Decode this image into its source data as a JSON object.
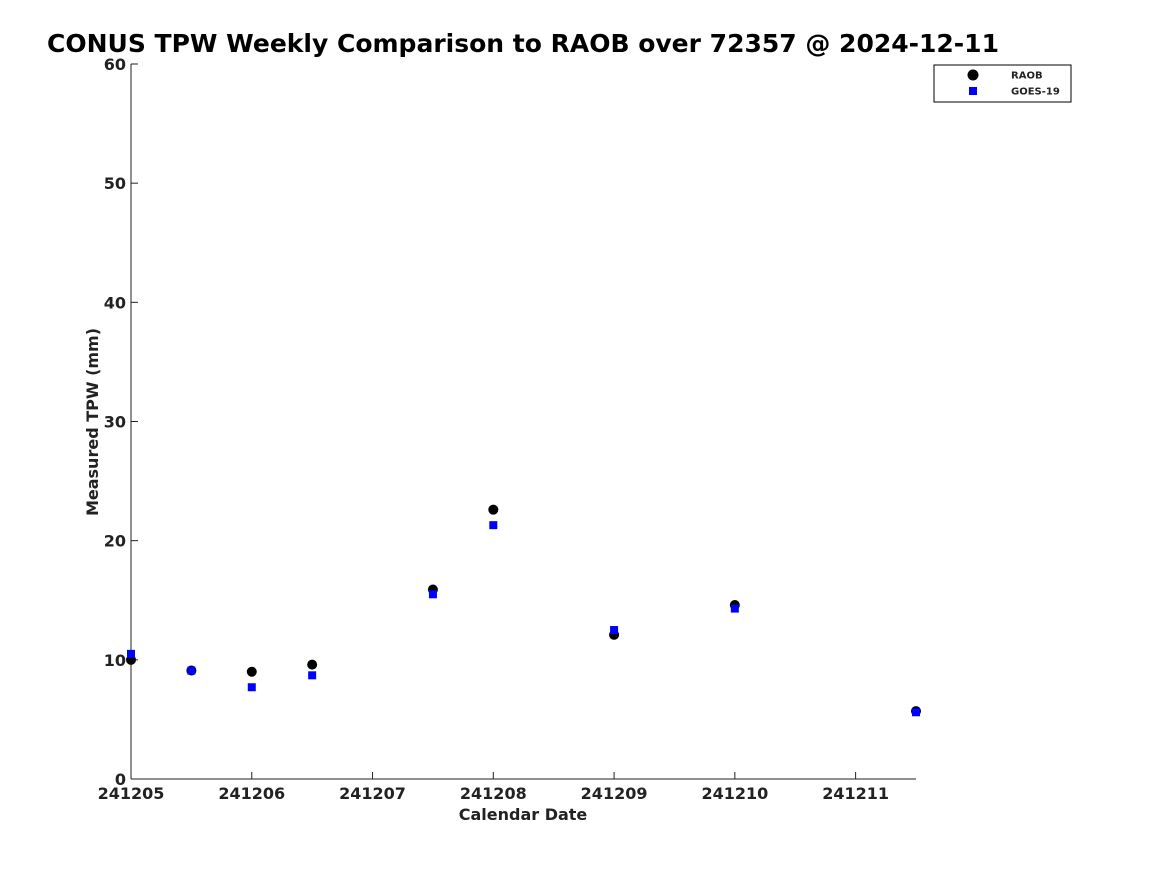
{
  "chart_data": {
    "type": "scatter",
    "title": "CONUS TPW Weekly Comparison to RAOB over 72357 @ 2024-12-11",
    "xlabel": "Calendar Date",
    "ylabel": "Measured TPW (mm)",
    "xlim": [
      0,
      6.5
    ],
    "ylim": [
      0,
      60
    ],
    "x_ticks": [
      {
        "value": 0,
        "label": "241205"
      },
      {
        "value": 1,
        "label": "241206"
      },
      {
        "value": 2,
        "label": "241207"
      },
      {
        "value": 3,
        "label": "241208"
      },
      {
        "value": 4,
        "label": "241209"
      },
      {
        "value": 5,
        "label": "241210"
      },
      {
        "value": 6,
        "label": "241211"
      }
    ],
    "y_ticks": [
      {
        "value": 0,
        "label": "0"
      },
      {
        "value": 10,
        "label": "10"
      },
      {
        "value": 20,
        "label": "20"
      },
      {
        "value": 30,
        "label": "30"
      },
      {
        "value": 40,
        "label": "40"
      },
      {
        "value": 50,
        "label": "50"
      },
      {
        "value": 60,
        "label": "60"
      }
    ],
    "grid": false,
    "legend_position": "top-right",
    "series": [
      {
        "name": "RAOB",
        "marker": "circle",
        "color": "#000000",
        "points": [
          {
            "x": 0.0,
            "y": 10.0
          },
          {
            "x": 0.5,
            "y": 9.1
          },
          {
            "x": 1.0,
            "y": 9.0
          },
          {
            "x": 1.5,
            "y": 9.6
          },
          {
            "x": 2.5,
            "y": 15.9
          },
          {
            "x": 3.0,
            "y": 22.6
          },
          {
            "x": 4.0,
            "y": 12.1
          },
          {
            "x": 5.0,
            "y": 14.6
          },
          {
            "x": 6.5,
            "y": 5.7
          }
        ]
      },
      {
        "name": "GOES-19",
        "marker": "square",
        "color": "#0000ff",
        "points": [
          {
            "x": 0.0,
            "y": 10.5
          },
          {
            "x": 0.5,
            "y": 9.1
          },
          {
            "x": 1.0,
            "y": 7.7
          },
          {
            "x": 1.5,
            "y": 8.7
          },
          {
            "x": 2.5,
            "y": 15.5
          },
          {
            "x": 3.0,
            "y": 21.3
          },
          {
            "x": 4.0,
            "y": 12.5
          },
          {
            "x": 5.0,
            "y": 14.3
          },
          {
            "x": 6.5,
            "y": 5.6
          }
        ]
      }
    ]
  }
}
